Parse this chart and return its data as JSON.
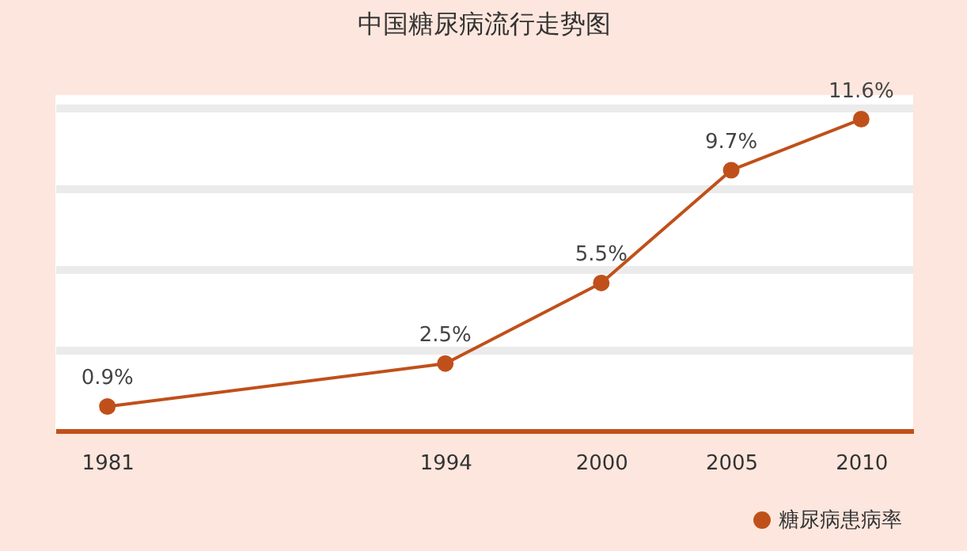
{
  "chart_data": {
    "type": "line",
    "title": "中国糖尿病流行走势图",
    "x": [
      1981,
      1994,
      2000,
      2005,
      2010
    ],
    "series": [
      {
        "name": "糖尿病患病率",
        "color": "#c0501a",
        "values": [
          0.9,
          2.5,
          5.5,
          9.7,
          11.6
        ],
        "value_labels": [
          "0.9%",
          "2.5%",
          "5.5%",
          "9.7%",
          "11.6%"
        ]
      }
    ],
    "xlim": [
      1979,
      2012
    ],
    "xticks": [
      1981,
      1994,
      2000,
      2005,
      2010
    ],
    "ylim": [
      0,
      12.5
    ],
    "yticks": [
      {
        "value": 3,
        "label": null
      },
      {
        "value": 6,
        "label": null
      },
      {
        "value": 9,
        "label": null
      },
      {
        "value": 12,
        "label": null
      }
    ],
    "grid": "y",
    "legend": "bottom right",
    "marker": "circle",
    "line_style": "solid",
    "tick_labels": "x"
  }
}
